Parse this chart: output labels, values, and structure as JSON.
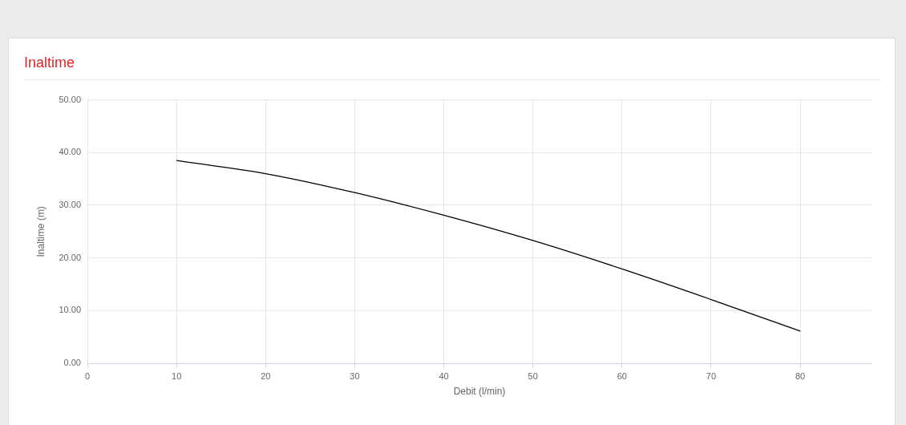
{
  "chart_data": {
    "type": "line",
    "title": "Inaltime",
    "xlabel": "Debit (l/min)",
    "ylabel": "Inaltime (m)",
    "x": [
      10,
      20,
      30,
      40,
      50,
      60,
      70,
      80
    ],
    "values": [
      38.5,
      36.0,
      32.4,
      28.1,
      23.3,
      17.9,
      12.1,
      6.1
    ],
    "color": "#000000",
    "xlim": [
      0,
      88
    ],
    "xticks": [
      0,
      10,
      20,
      30,
      40,
      50,
      60,
      70,
      80
    ],
    "ylim": [
      0,
      50
    ],
    "yticks": [
      {
        "value": 0,
        "label": "0.00"
      },
      {
        "value": 10,
        "label": "10.00"
      },
      {
        "value": 20,
        "label": "20.00"
      },
      {
        "value": 30,
        "label": "30.00"
      },
      {
        "value": 40,
        "label": "40.00"
      },
      {
        "value": 50,
        "label": "50.00"
      }
    ],
    "grid": true,
    "legend": false,
    "marker": "none",
    "line_style": "solid"
  }
}
